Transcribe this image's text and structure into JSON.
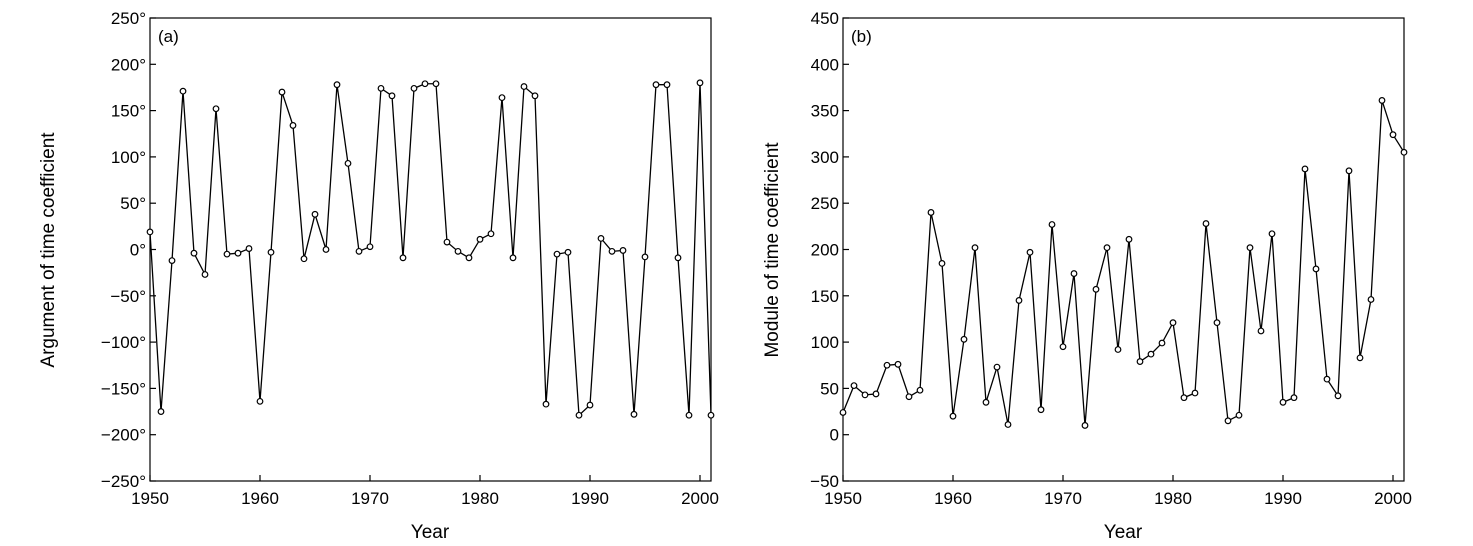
{
  "chart_data": [
    {
      "type": "line",
      "panel_label": "(a)",
      "xlabel": "Year",
      "ylabel": "Argument of time coefficient",
      "xlim": [
        1950,
        2001
      ],
      "ylim": [
        -250,
        250
      ],
      "x_ticks": [
        1950,
        1960,
        1970,
        1980,
        1990,
        2000
      ],
      "x_tick_labels": [
        "1950",
        "1960",
        "1970",
        "1980",
        "1990",
        "2000"
      ],
      "y_ticks": [
        -250,
        -200,
        -150,
        -100,
        -50,
        0,
        50,
        100,
        150,
        200,
        250
      ],
      "y_tick_labels": [
        "−250°",
        "−200°",
        "−150°",
        "−100°",
        "−50°",
        "0°",
        "50°",
        "100°",
        "150°",
        "200°",
        "250°"
      ],
      "grid": false,
      "series": [
        {
          "x": [
            1950,
            1951,
            1952,
            1953,
            1954,
            1955,
            1956,
            1957,
            1958,
            1959,
            1960,
            1961,
            1962,
            1963,
            1964,
            1965,
            1966,
            1967,
            1968,
            1969,
            1970,
            1971,
            1972,
            1973,
            1974,
            1975,
            1976,
            1977,
            1978,
            1979,
            1980,
            1981,
            1982,
            1983,
            1984,
            1985,
            1986,
            1987,
            1988,
            1989,
            1990,
            1991,
            1992,
            1993,
            1994,
            1995,
            1996,
            1997,
            1998,
            1999,
            2000,
            2001
          ],
          "values": [
            19,
            -175,
            -12,
            171,
            -4,
            -27,
            152,
            -5,
            -4,
            1,
            -164,
            -3,
            170,
            134,
            -10,
            38,
            0,
            178,
            93,
            -2,
            3,
            174,
            166,
            -9,
            174,
            179,
            179,
            8,
            -2,
            -9,
            11,
            17,
            164,
            -9,
            176,
            166,
            -167,
            -5,
            -3,
            -179,
            -168,
            12,
            -2,
            -1,
            -178,
            -8,
            178,
            178,
            -9,
            -179,
            180,
            -179
          ],
          "color": "#000000"
        }
      ]
    },
    {
      "type": "line",
      "panel_label": "(b)",
      "xlabel": "Year",
      "ylabel": "Module of time coefficient",
      "xlim": [
        1950,
        2001
      ],
      "ylim": [
        -50,
        450
      ],
      "x_ticks": [
        1950,
        1960,
        1970,
        1980,
        1990,
        2000
      ],
      "x_tick_labels": [
        "1950",
        "1960",
        "1970",
        "1980",
        "1990",
        "2000"
      ],
      "y_ticks": [
        -50,
        0,
        50,
        100,
        150,
        200,
        250,
        300,
        350,
        400,
        450
      ],
      "y_tick_labels": [
        "−50",
        "0",
        "50",
        "100",
        "150",
        "200",
        "250",
        "300",
        "350",
        "400",
        "450"
      ],
      "grid": false,
      "series": [
        {
          "x": [
            1950,
            1951,
            1952,
            1953,
            1954,
            1955,
            1956,
            1957,
            1958,
            1959,
            1960,
            1961,
            1962,
            1963,
            1964,
            1965,
            1966,
            1967,
            1968,
            1969,
            1970,
            1971,
            1972,
            1973,
            1974,
            1975,
            1976,
            1977,
            1978,
            1979,
            1980,
            1981,
            1982,
            1983,
            1984,
            1985,
            1986,
            1987,
            1988,
            1989,
            1990,
            1991,
            1992,
            1993,
            1994,
            1995,
            1996,
            1997,
            1998,
            1999,
            2000,
            2001
          ],
          "values": [
            24,
            53,
            43,
            44,
            75,
            76,
            41,
            48,
            240,
            185,
            20,
            103,
            202,
            35,
            73,
            11,
            145,
            197,
            27,
            227,
            95,
            174,
            10,
            157,
            202,
            92,
            211,
            79,
            87,
            99,
            121,
            40,
            45,
            228,
            121,
            15,
            21,
            202,
            112,
            217,
            35,
            40,
            287,
            179,
            60,
            42,
            285,
            83,
            146,
            361,
            324,
            305
          ],
          "color": "#000000"
        }
      ]
    }
  ]
}
